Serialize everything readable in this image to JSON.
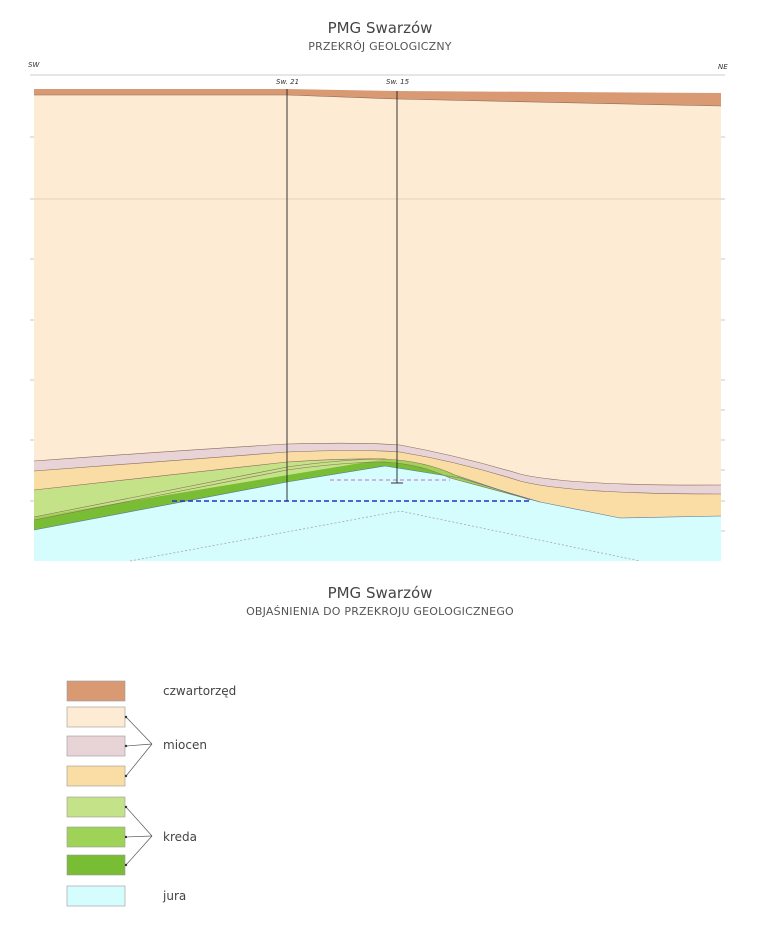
{
  "section": {
    "title": "PMG Swarzów",
    "subtitle": "PRZEKRÓJ GEOLOGICZNY",
    "left_dir": "SW",
    "right_dir": "NE",
    "wells": [
      "Sw. 21",
      "Sw. 15"
    ]
  },
  "legend": {
    "title": "PMG Swarzów",
    "subtitle": "OBJAŚNIENIA DO PRZEKROJU GEOLOGICZNEGO",
    "groups": [
      {
        "label": "czwartorzęd",
        "colors": [
          "#d99a73"
        ]
      },
      {
        "label": "miocen",
        "colors": [
          "#fdebd3",
          "#e8d3d6",
          "#fadca5"
        ]
      },
      {
        "label": "kreda",
        "colors": [
          "#c4e287",
          "#9fd357",
          "#78bd33"
        ]
      },
      {
        "label": "jura",
        "colors": [
          "#d5fdfd"
        ]
      }
    ]
  },
  "colors": {
    "quaternary": "#d99a73",
    "miocene_main": "#fdebd3",
    "miocene_pink": "#e8d3d6",
    "miocene_orange": "#fadca5",
    "cretaceous_light": "#c4e287",
    "cretaceous_mid": "#9fd357",
    "cretaceous_dark": "#78bd33",
    "jurassic": "#d5fdfd"
  }
}
